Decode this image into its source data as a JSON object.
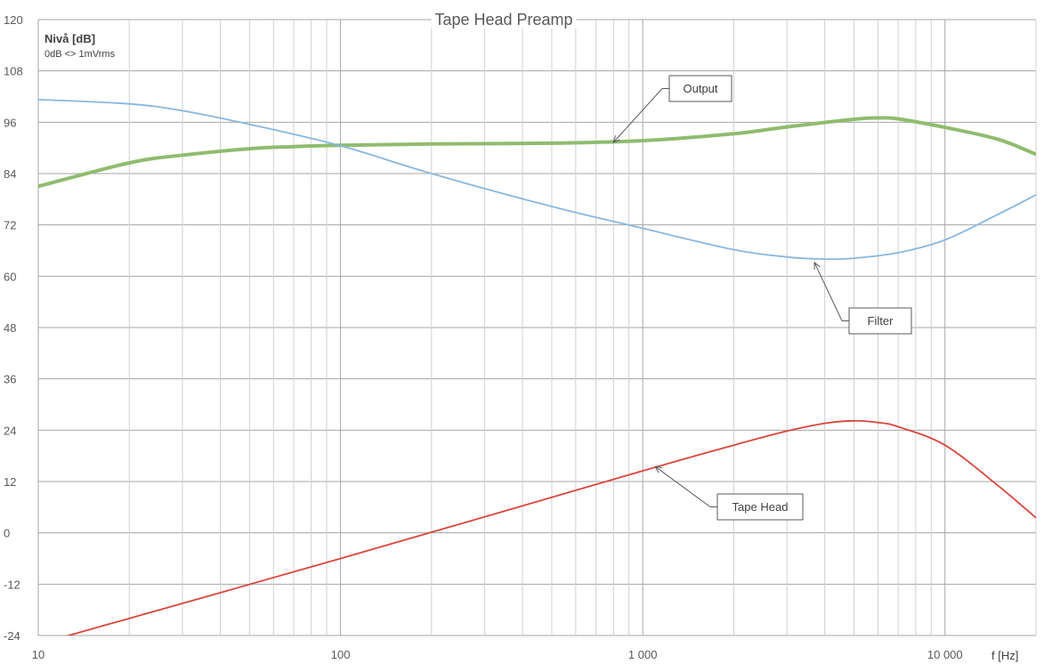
{
  "chart_data": {
    "type": "line",
    "title": "Tape Head Preamp",
    "ylabel": "Nivå [dB]",
    "ylabel_note": "0dB <> 1mVrms",
    "xlabel": "f [Hz]",
    "x_scale": "log",
    "xlim": [
      10,
      20000
    ],
    "ylim": [
      -24,
      120
    ],
    "x_ticks": [
      10,
      100,
      1000,
      10000
    ],
    "x_tick_labels": [
      "10",
      "100",
      "1 000",
      "10 000"
    ],
    "y_ticks": [
      -24,
      -12,
      0,
      12,
      24,
      36,
      48,
      60,
      72,
      84,
      96,
      108,
      120
    ],
    "y_tick_labels": [
      "-24",
      "-12",
      "0",
      "12",
      "24",
      "36",
      "48",
      "60",
      "72",
      "84",
      "96",
      "108",
      "120"
    ],
    "grid": true,
    "series": [
      {
        "name": "Output",
        "color": "#8fbc6e",
        "x": [
          10,
          20,
          30,
          50,
          70,
          100,
          200,
          500,
          1000,
          2000,
          3000,
          5000,
          6000,
          7000,
          10000,
          15000,
          20000
        ],
        "y": [
          81,
          86.5,
          88.3,
          89.8,
          90.3,
          90.6,
          90.9,
          91.1,
          91.7,
          93.3,
          94.9,
          96.7,
          97,
          96.8,
          94.8,
          92,
          88.5
        ]
      },
      {
        "name": "Filter",
        "color": "#88b8e0",
        "x": [
          10,
          20,
          30,
          50,
          100,
          200,
          500,
          1000,
          2000,
          3000,
          4000,
          5000,
          7000,
          10000,
          15000,
          20000
        ],
        "y": [
          101.3,
          100.3,
          98.7,
          95.5,
          90.5,
          84,
          76.3,
          71.2,
          66.2,
          64.5,
          64,
          64.2,
          65.5,
          68.5,
          74.5,
          79
        ]
      },
      {
        "name": "Tape Head",
        "color": "#d9463d",
        "x": [
          10,
          100,
          1000,
          2000,
          3000,
          4000,
          5000,
          6000,
          7000,
          10000,
          15000,
          20000
        ],
        "y": [
          -26,
          -6,
          14.5,
          20.5,
          23.8,
          25.6,
          26.2,
          25.8,
          24.8,
          20.5,
          11,
          3.5
        ]
      }
    ],
    "annotations": [
      {
        "label": "Output",
        "x": 800,
        "y": 91.3
      },
      {
        "label": "Filter",
        "x": 3700,
        "y": 63.2
      },
      {
        "label": "Tape Head",
        "x": 1100,
        "y": 15.5
      }
    ]
  }
}
